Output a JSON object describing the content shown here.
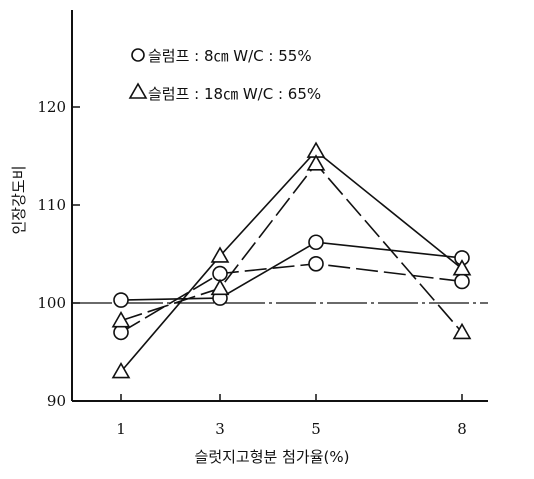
{
  "chart_data": {
    "type": "line",
    "xlabel": "슬럿지고형분 첨가율(%)",
    "ylabel": "인장강도비",
    "x": [
      1,
      3,
      5,
      8
    ],
    "x_tick_labels": [
      "1",
      "3",
      "5",
      "8"
    ],
    "ylim": [
      90,
      125
    ],
    "y_ticks": [
      90,
      100,
      110,
      120
    ],
    "y_tick_labels": [
      "90",
      "100",
      "110",
      "120"
    ],
    "reference_line": 100,
    "grid": false,
    "legend_placement": "top-left",
    "legend": [
      {
        "marker": "○",
        "text": "슬럼프 : 8㎝  W/C : 55%"
      },
      {
        "marker": "△",
        "text": "슬럼프 : 18㎝   W/C : 65%"
      }
    ],
    "series": [
      {
        "marker": "circle",
        "line": "solid",
        "values": [
          100.3,
          100.5,
          106.2,
          104.6
        ]
      },
      {
        "marker": "circle",
        "line": "dashed",
        "values": [
          97.0,
          103.0,
          104.0,
          102.2
        ]
      },
      {
        "marker": "triangle",
        "line": "solid",
        "values": [
          93.0,
          104.8,
          115.5,
          103.5
        ]
      },
      {
        "marker": "triangle",
        "line": "dashed",
        "values": [
          98.2,
          101.5,
          114.2,
          97.0
        ]
      }
    ]
  }
}
